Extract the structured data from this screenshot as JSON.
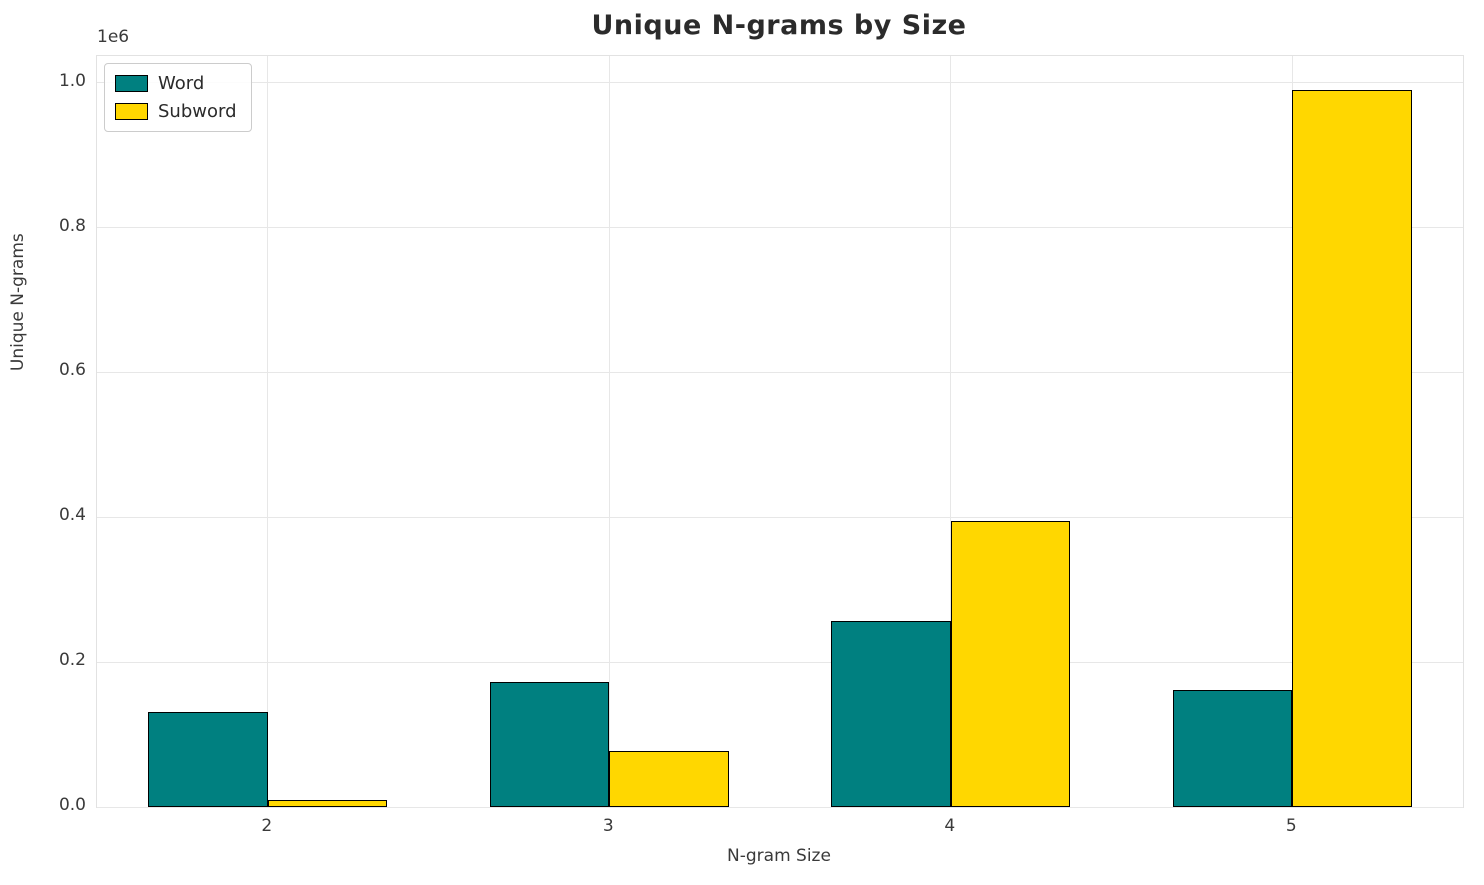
{
  "chart_data": {
    "type": "bar",
    "title": "Unique N-grams by Size",
    "xlabel": "N-gram Size",
    "ylabel": "Unique N-grams",
    "y_offset_text": "1e6",
    "categories": [
      "2",
      "3",
      "4",
      "5"
    ],
    "series": [
      {
        "name": "Word",
        "color": "#008080",
        "values": [
          131000,
          173000,
          257000,
          162000
        ]
      },
      {
        "name": "Subword",
        "color": "#FFD700",
        "values": [
          10000,
          78000,
          395000,
          990000
        ]
      }
    ],
    "bar_edge_color": "#000000",
    "bar_width_fraction": 0.35,
    "ylim": [
      0,
      1037000
    ],
    "yticks": [
      {
        "value": 0,
        "label": "0.0"
      },
      {
        "value": 200000,
        "label": "0.2"
      },
      {
        "value": 400000,
        "label": "0.4"
      },
      {
        "value": 600000,
        "label": "0.6"
      },
      {
        "value": 800000,
        "label": "0.8"
      },
      {
        "value": 1000000,
        "label": "1.0"
      }
    ],
    "grid": true,
    "grid_color": "#e7e7e7",
    "background": "#ffffff",
    "legend_position": "upper left"
  }
}
